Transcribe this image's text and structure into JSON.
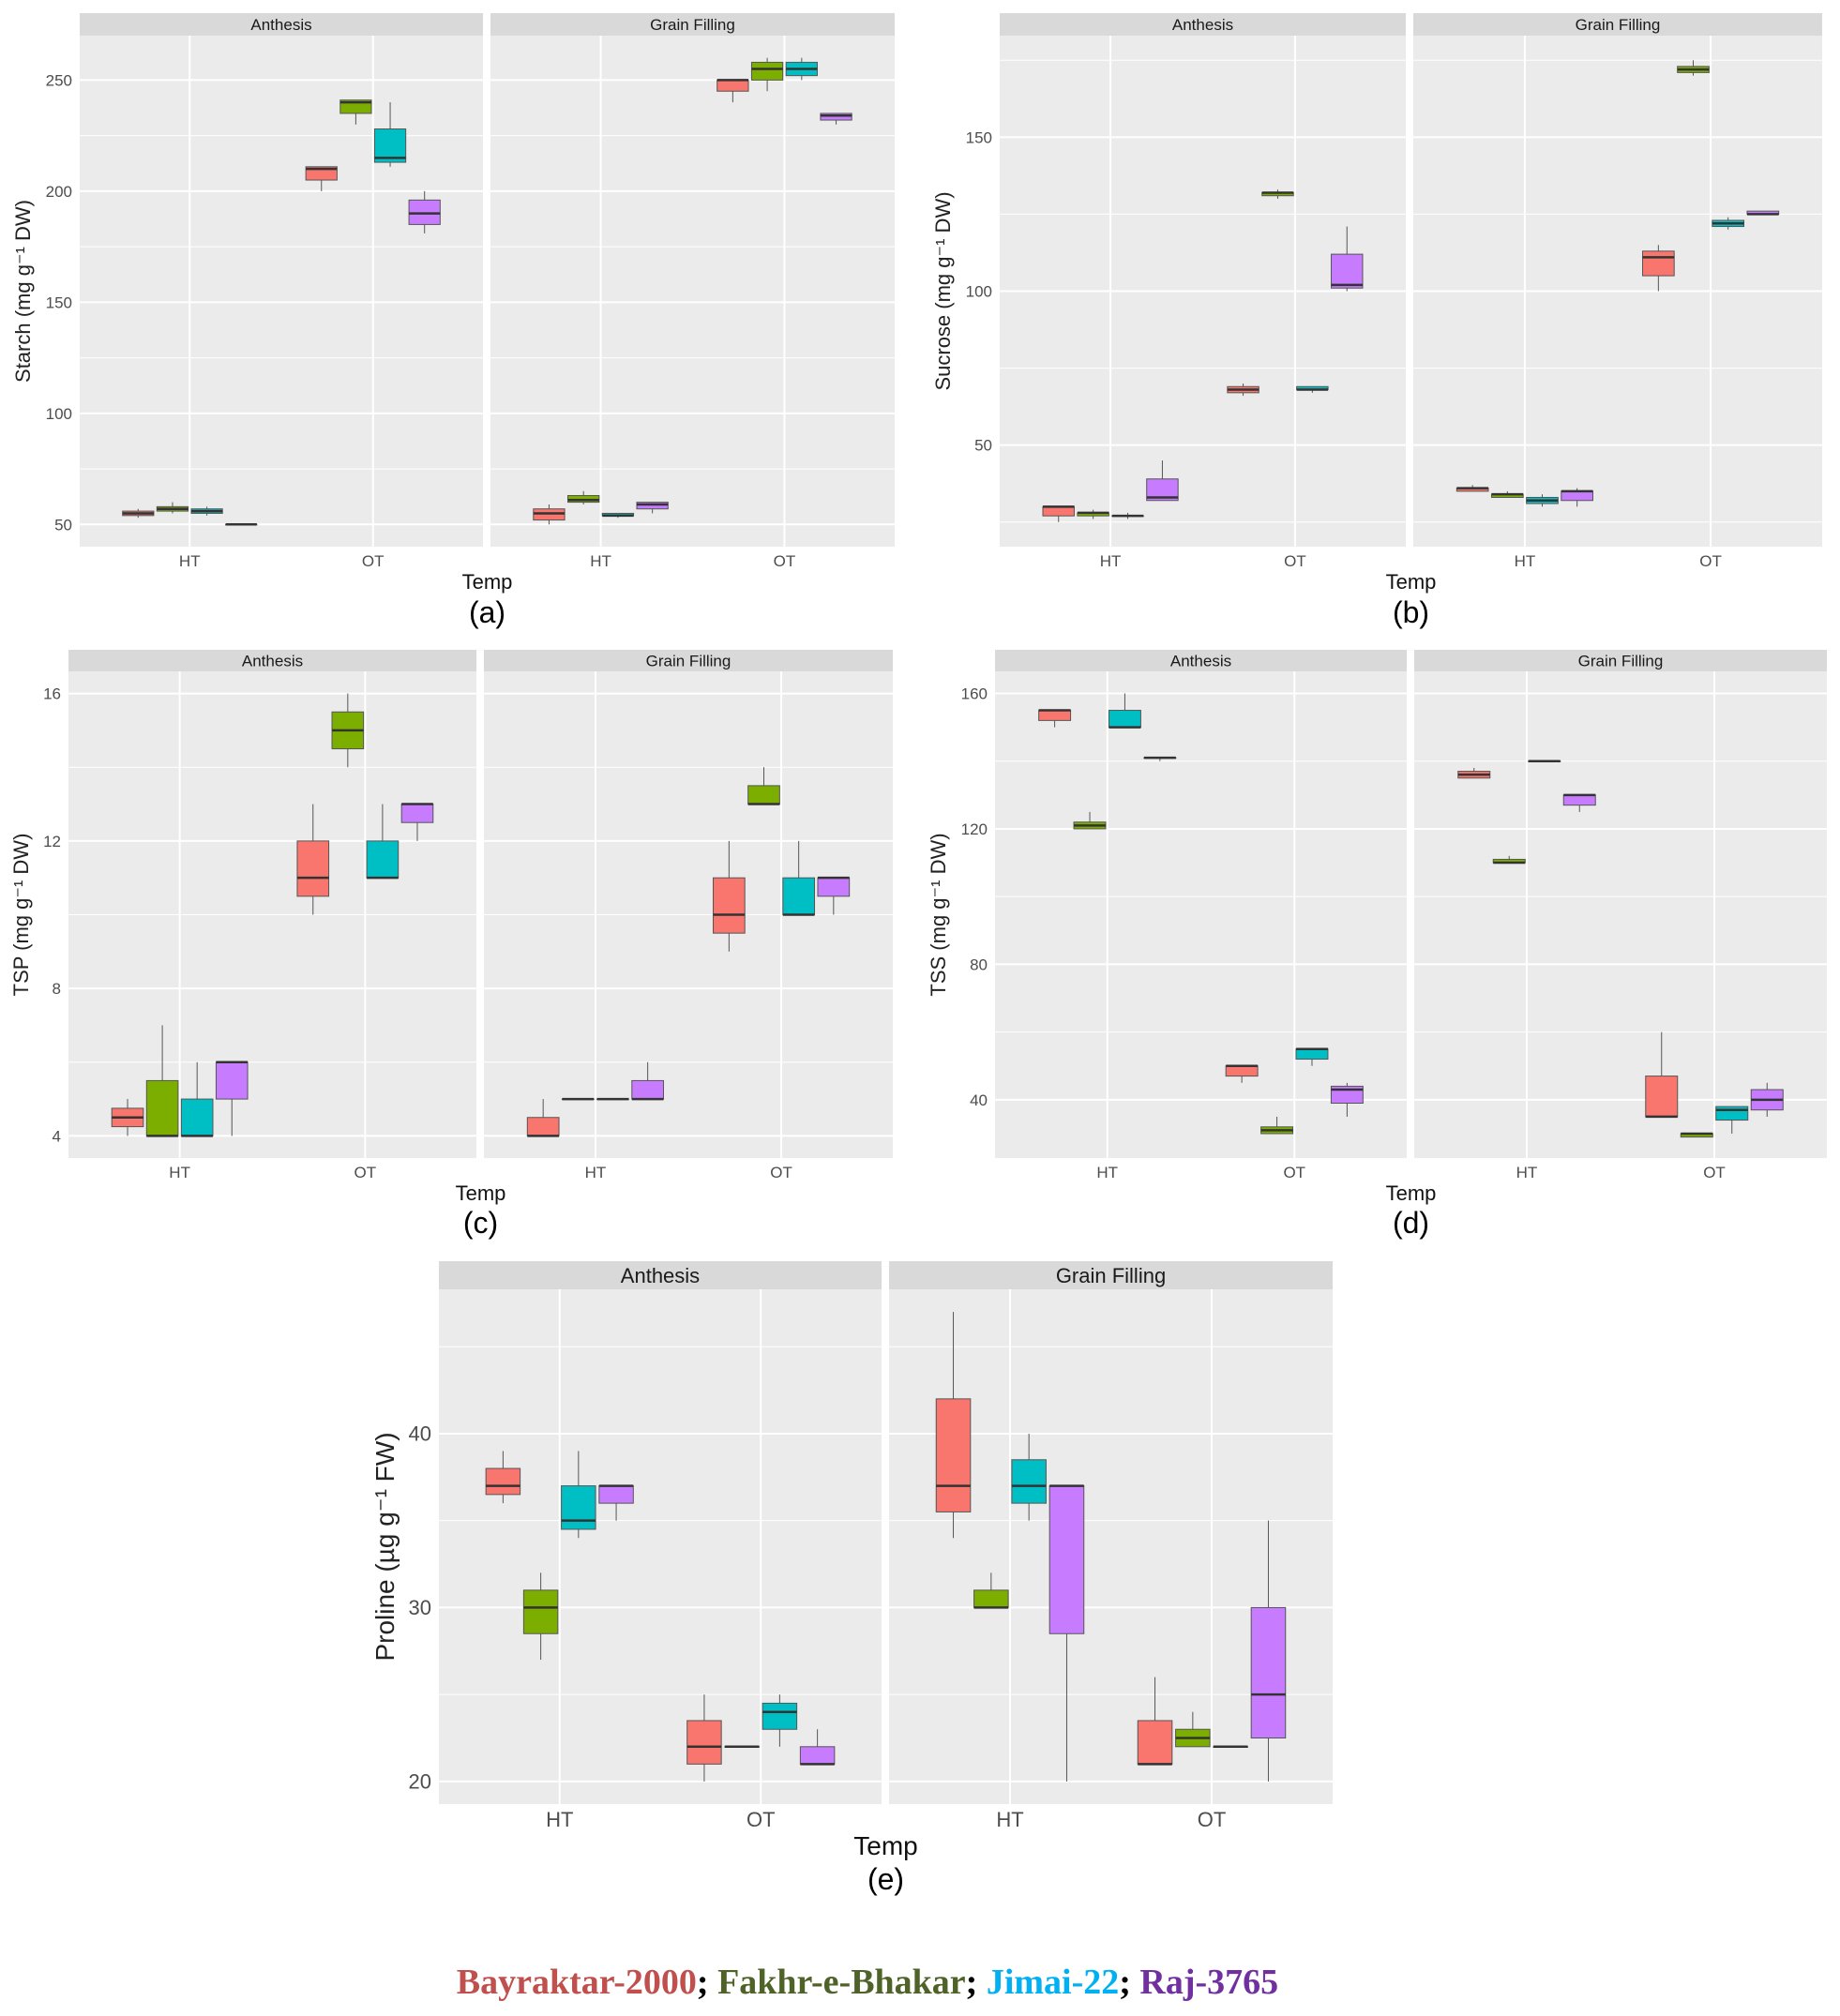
{
  "chart_data": [
    {
      "type": "boxplot",
      "label": "(a)",
      "ylabel": "Starch (mg g⁻¹ DW)",
      "xlabel": "Temp",
      "ylim": [
        40,
        270
      ],
      "yticks": [
        50,
        100,
        150,
        200,
        250
      ],
      "grid": true,
      "facets": [
        "Anthesis",
        "Grain Filling"
      ],
      "categories": [
        "HT",
        "OT"
      ],
      "stats_order": [
        "min",
        "q1",
        "median",
        "q3",
        "max"
      ],
      "boxes": {
        "Anthesis": {
          "HT": [
            [
              53,
              54,
              55,
              56,
              57
            ],
            [
              55,
              56,
              57,
              58,
              60
            ],
            [
              54,
              55,
              56,
              57,
              58
            ],
            [
              50,
              50,
              50,
              50,
              50
            ]
          ],
          "OT": [
            [
              200,
              205,
              210,
              211,
              211
            ],
            [
              230,
              235,
              240,
              241,
              241
            ],
            [
              211,
              213,
              215,
              228,
              240
            ],
            [
              181,
              185,
              190,
              196,
              200
            ]
          ]
        },
        "Grain Filling": {
          "HT": [
            [
              50,
              52,
              55,
              57,
              59
            ],
            [
              59,
              60,
              61,
              63,
              65
            ],
            [
              53,
              54,
              54,
              55,
              55
            ],
            [
              55,
              57,
              59,
              60,
              60
            ]
          ],
          "OT": [
            [
              240,
              245,
              250,
              250,
              250
            ],
            [
              245,
              250,
              255,
              258,
              260
            ],
            [
              250,
              252,
              255,
              258,
              260
            ],
            [
              230,
              232,
              234,
              235,
              235
            ]
          ]
        }
      }
    },
    {
      "type": "boxplot",
      "label": "(b)",
      "ylabel": "Sucrose  (mg g⁻¹ DW)",
      "xlabel": "Temp",
      "ylim": [
        17,
        183
      ],
      "yticks": [
        50,
        100,
        150
      ],
      "grid": true,
      "facets": [
        "Anthesis",
        "Grain Filling"
      ],
      "categories": [
        "HT",
        "OT"
      ],
      "stats_order": [
        "min",
        "q1",
        "median",
        "q3",
        "max"
      ],
      "boxes": {
        "Anthesis": {
          "HT": [
            [
              25,
              27,
              30,
              30,
              30
            ],
            [
              26,
              27,
              28,
              28,
              29
            ],
            [
              26,
              27,
              27,
              27,
              28
            ],
            [
              32,
              32,
              33,
              39,
              45
            ]
          ],
          "OT": [
            [
              66,
              67,
              68,
              69,
              70
            ],
            [
              130,
              131,
              132,
              132,
              133
            ],
            [
              67,
              68,
              68,
              69,
              69
            ],
            [
              100,
              101,
              102,
              112,
              121
            ]
          ]
        },
        "Grain Filling": {
          "HT": [
            [
              35,
              35,
              36,
              36,
              37
            ],
            [
              33,
              33,
              34,
              34,
              35
            ],
            [
              30,
              31,
              32,
              33,
              34
            ],
            [
              30,
              32,
              35,
              35,
              36
            ]
          ],
          "OT": [
            [
              100,
              105,
              111,
              113,
              115
            ],
            [
              170,
              171,
              172,
              173,
              175
            ],
            [
              120,
              121,
              122,
              123,
              124
            ],
            [
              125,
              125,
              125,
              126,
              126
            ]
          ]
        }
      }
    },
    {
      "type": "boxplot",
      "label": "(c)",
      "ylabel": "TSP  (mg g⁻¹ DW)",
      "xlabel": "Temp",
      "ylim": [
        3.4,
        16.6
      ],
      "yticks": [
        4,
        8,
        12,
        16
      ],
      "grid": true,
      "facets": [
        "Anthesis",
        "Grain Filling"
      ],
      "categories": [
        "HT",
        "OT"
      ],
      "stats_order": [
        "min",
        "q1",
        "median",
        "q3",
        "max"
      ],
      "boxes": {
        "Anthesis": {
          "HT": [
            [
              4,
              4.25,
              4.5,
              4.75,
              5
            ],
            [
              4,
              4,
              4,
              5.5,
              7
            ],
            [
              4,
              4,
              4,
              5,
              6
            ],
            [
              4,
              5,
              6,
              6,
              6
            ]
          ],
          "OT": [
            [
              10,
              10.5,
              11,
              12,
              13
            ],
            [
              14,
              14.5,
              15,
              15.5,
              16
            ],
            [
              11,
              11,
              11,
              12,
              13
            ],
            [
              12,
              12.5,
              13,
              13,
              13
            ]
          ]
        },
        "Grain Filling": {
          "HT": [
            [
              4,
              4,
              4,
              4.5,
              5
            ],
            [
              5,
              5,
              5,
              5,
              5
            ],
            [
              5,
              5,
              5,
              5,
              5
            ],
            [
              5,
              5,
              5,
              5.5,
              6
            ]
          ],
          "OT": [
            [
              9,
              9.5,
              10,
              11,
              12
            ],
            [
              13,
              13,
              13,
              13.5,
              14
            ],
            [
              10,
              10,
              10,
              11,
              12
            ],
            [
              10,
              10.5,
              11,
              11,
              11
            ]
          ]
        }
      }
    },
    {
      "type": "boxplot",
      "label": "(d)",
      "ylabel": "TSS  (mg g⁻¹ DW)",
      "xlabel": "Temp",
      "ylim": [
        22.8,
        166.5
      ],
      "yticks": [
        40,
        80,
        120,
        160
      ],
      "grid": true,
      "facets": [
        "Anthesis",
        "Grain Filling"
      ],
      "categories": [
        "HT",
        "OT"
      ],
      "stats_order": [
        "min",
        "q1",
        "median",
        "q3",
        "max"
      ],
      "boxes": {
        "Anthesis": {
          "HT": [
            [
              150,
              152,
              155,
              155,
              155
            ],
            [
              120,
              120,
              121,
              122,
              125
            ],
            [
              150,
              150,
              150,
              155,
              160
            ],
            [
              140,
              141,
              141,
              141,
              141
            ]
          ],
          "OT": [
            [
              45,
              47,
              50,
              50,
              50
            ],
            [
              30,
              30,
              31,
              32,
              35
            ],
            [
              50,
              52,
              55,
              55,
              55
            ],
            [
              35,
              39,
              43,
              44,
              45
            ]
          ]
        },
        "Grain Filling": {
          "HT": [
            [
              135,
              135,
              136,
              137,
              138
            ],
            [
              110,
              110,
              110,
              111,
              112
            ],
            [
              140,
              140,
              140,
              140,
              140
            ],
            [
              125,
              127,
              130,
              130,
              130
            ]
          ],
          "OT": [
            [
              35,
              35,
              35,
              47,
              60
            ],
            [
              29,
              29,
              30,
              30,
              30
            ],
            [
              30,
              34,
              37,
              38,
              38
            ],
            [
              35,
              37,
              40,
              43,
              45
            ]
          ]
        }
      }
    },
    {
      "type": "boxplot",
      "label": "(e)",
      "ylabel": "Proline  (µg g⁻¹ FW)",
      "xlabel": "Temp",
      "ylim": [
        18.7,
        48.3
      ],
      "yticks": [
        20,
        30,
        40
      ],
      "grid": true,
      "facets": [
        "Anthesis",
        "Grain Filling"
      ],
      "categories": [
        "HT",
        "OT"
      ],
      "stats_order": [
        "min",
        "q1",
        "median",
        "q3",
        "max"
      ],
      "boxes": {
        "Anthesis": {
          "HT": [
            [
              36,
              36.5,
              37,
              38,
              39
            ],
            [
              27,
              28.5,
              30,
              31,
              32
            ],
            [
              34,
              34.5,
              35,
              37,
              39
            ],
            [
              35,
              36,
              37,
              37,
              37
            ]
          ],
          "OT": [
            [
              20,
              21,
              22,
              23.5,
              25
            ],
            [
              22,
              22,
              22,
              22,
              22
            ],
            [
              22,
              23,
              24,
              24.5,
              25
            ],
            [
              21,
              21,
              21,
              22,
              23
            ]
          ]
        },
        "Grain Filling": {
          "HT": [
            [
              34,
              35.5,
              37,
              42,
              47
            ],
            [
              30,
              30,
              30,
              31,
              32
            ],
            [
              35,
              36,
              37,
              38.5,
              40
            ],
            [
              20,
              28.5,
              37,
              37,
              37
            ]
          ],
          "OT": [
            [
              21,
              21,
              21,
              23.5,
              26
            ],
            [
              22,
              22,
              22.5,
              23,
              24
            ],
            [
              22,
              22,
              22,
              22,
              22
            ],
            [
              20,
              22.5,
              25,
              30,
              35
            ]
          ]
        }
      }
    }
  ],
  "series": [
    {
      "name": "Bayraktar-2000",
      "fill": "#F8766D",
      "legend_color": "#C0504D"
    },
    {
      "name": "Fakhr-e-Bhakar",
      "fill": "#7CAE00",
      "legend_color": "#4F6228"
    },
    {
      "name": "Jimai-22",
      "fill": "#00BFC4",
      "legend_color": "#00B0F0"
    },
    {
      "name": "Raj-3765",
      "fill": "#C77CFF",
      "legend_color": "#7030A0"
    }
  ],
  "legend": {
    "separator": "; "
  }
}
